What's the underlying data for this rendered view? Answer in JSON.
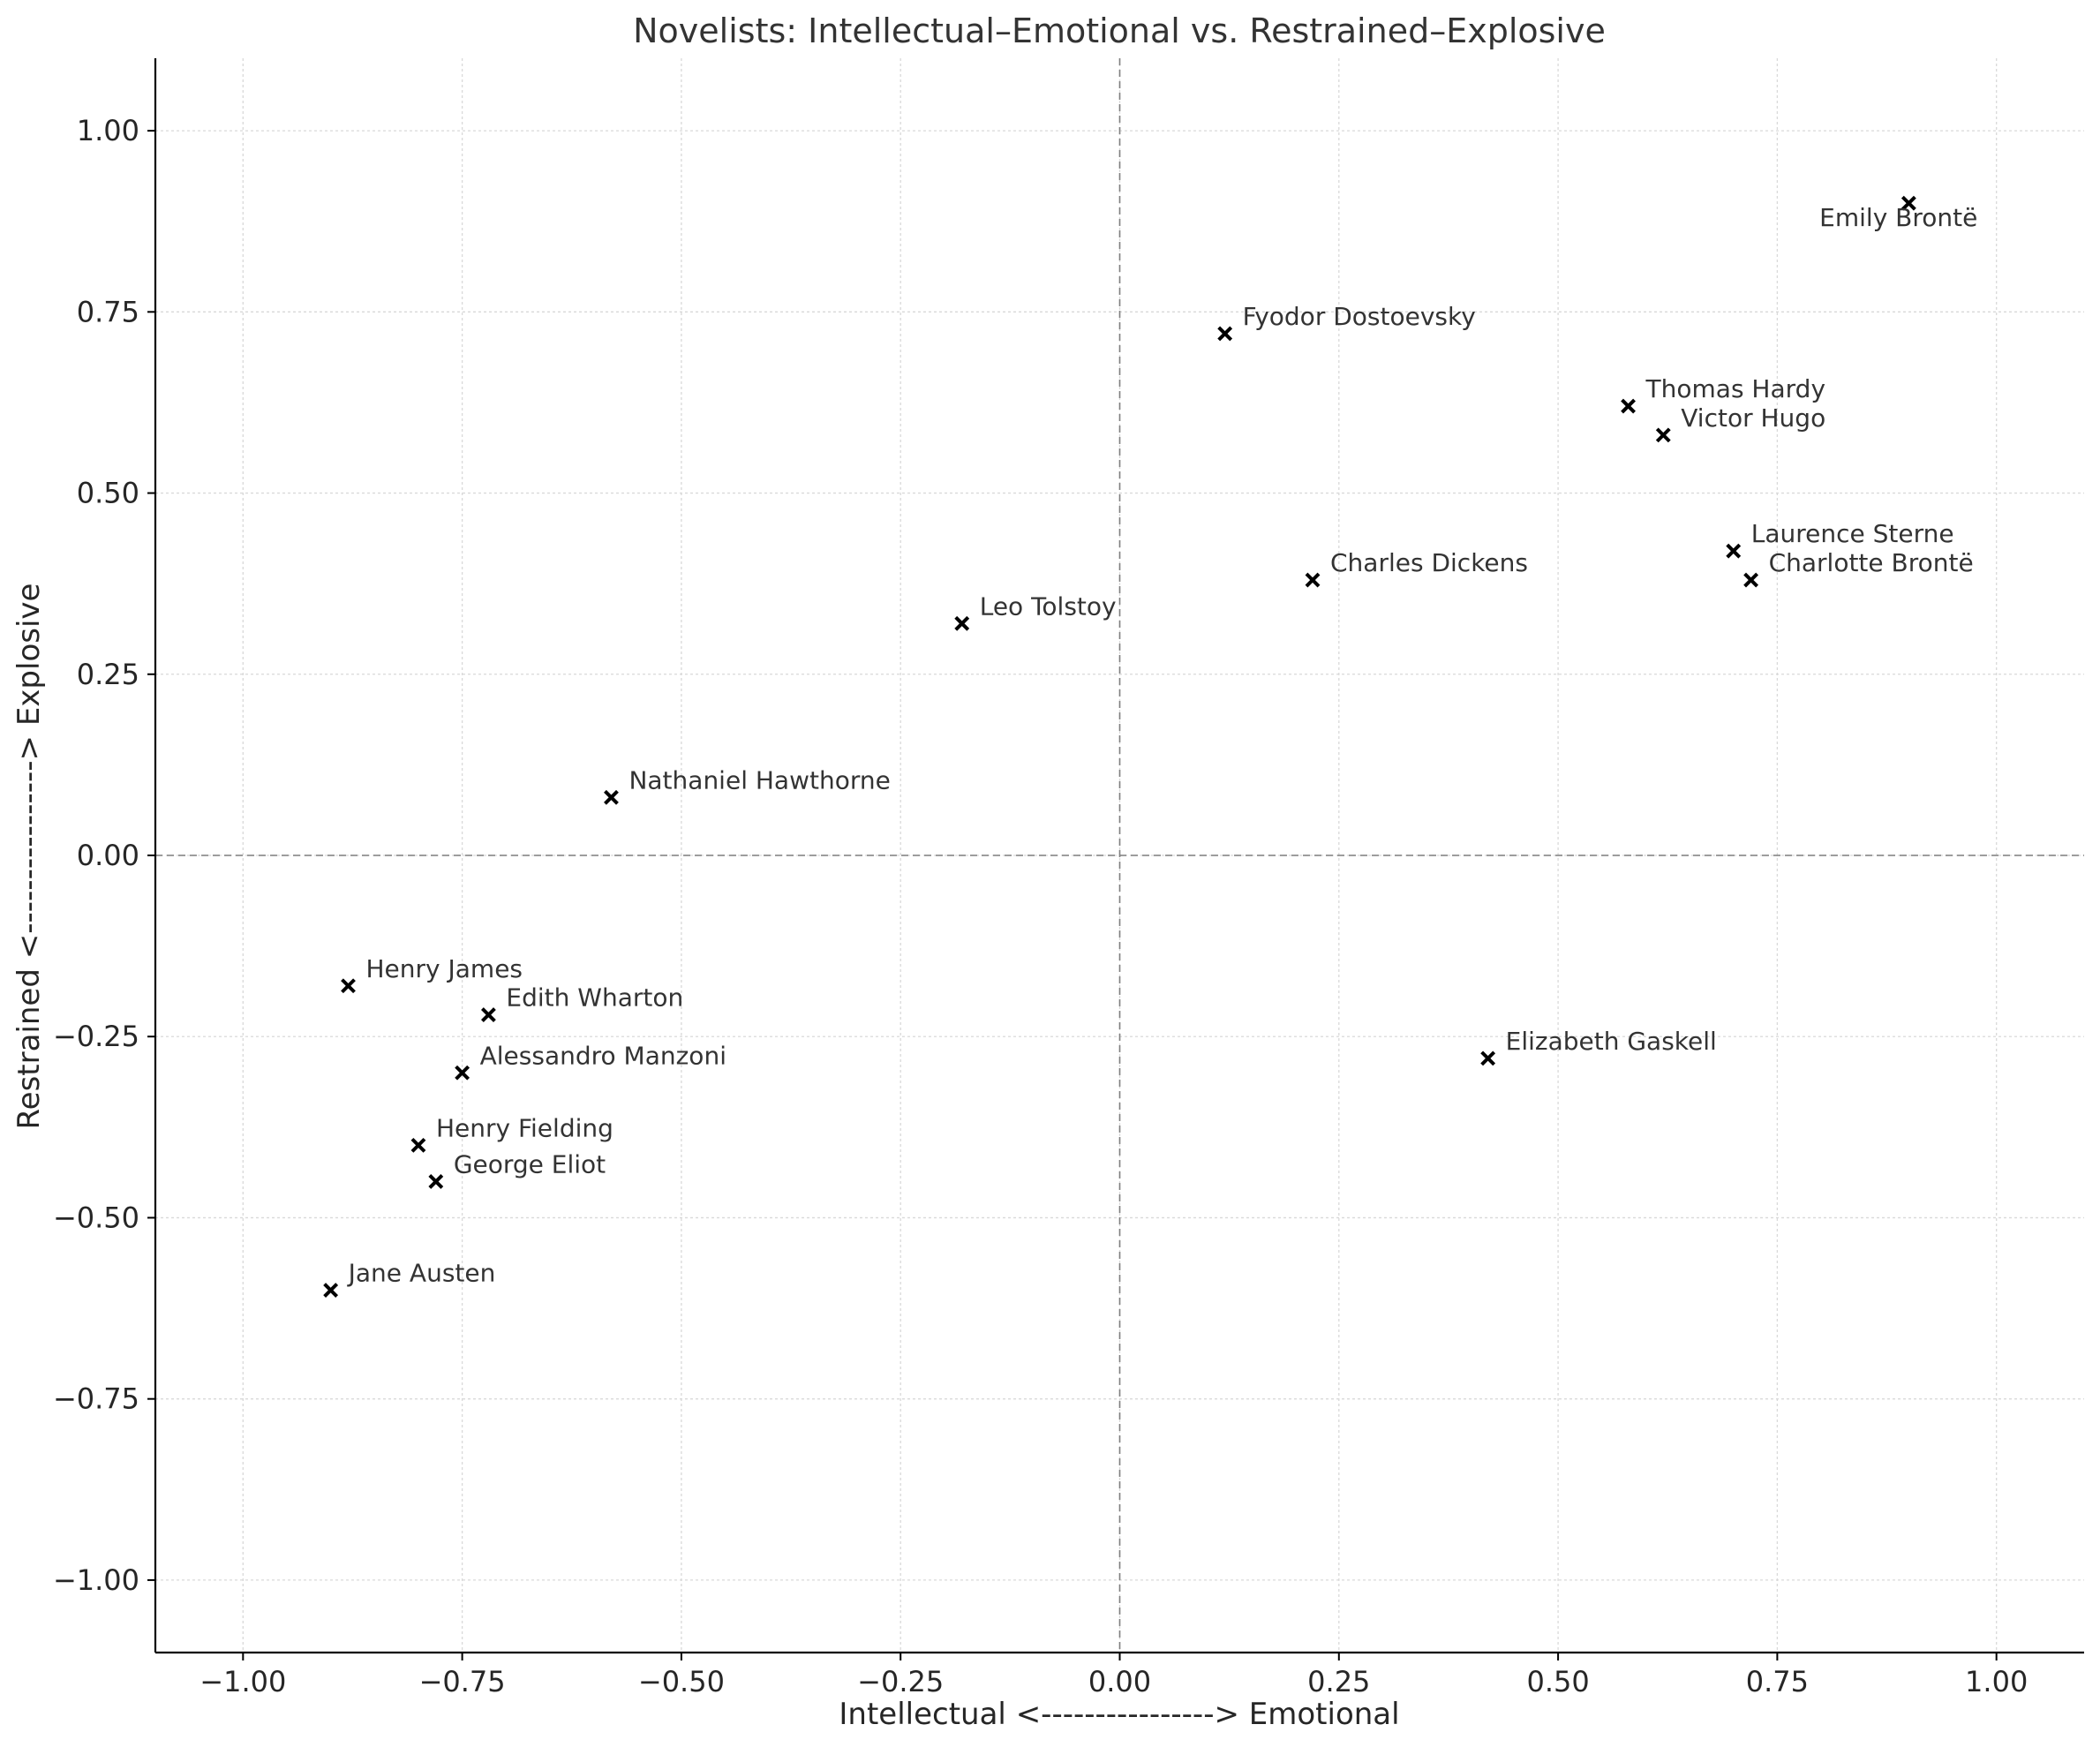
{
  "chart_data": {
    "type": "scatter",
    "title": "Novelists: Intellectual–Emotional vs. Restrained–Explosive",
    "xlabel": "Intellectual <----------------> Emotional",
    "ylabel": "Restrained <----------------> Explosive",
    "xlim": [
      -1.1,
      1.1
    ],
    "ylim": [
      -1.1,
      1.1
    ],
    "xticks": [
      -1.0,
      -0.75,
      -0.5,
      -0.25,
      0.0,
      0.25,
      0.5,
      0.75,
      1.0
    ],
    "yticks": [
      -1.0,
      -0.75,
      -0.5,
      -0.25,
      0.0,
      0.25,
      0.5,
      0.75,
      1.0
    ],
    "xtick_labels": [
      "−1.00",
      "−0.75",
      "−0.50",
      "−0.25",
      "0.00",
      "0.25",
      "0.50",
      "0.75",
      "1.00"
    ],
    "ytick_labels": [
      "−1.00",
      "−0.75",
      "−0.50",
      "−0.25",
      "0.00",
      "0.25",
      "0.50",
      "0.75",
      "1.00"
    ],
    "grid": true,
    "reference_lines": {
      "x": 0,
      "y": 0,
      "style": "dashed"
    },
    "marker": "x",
    "marker_color": "#000000",
    "points": [
      {
        "label": "Emily Brontë",
        "x": 0.9,
        "y": 0.9,
        "label_position": "below-left"
      },
      {
        "label": "Fyodor Dostoevsky",
        "x": 0.12,
        "y": 0.72
      },
      {
        "label": "Thomas Hardy",
        "x": 0.58,
        "y": 0.62
      },
      {
        "label": "Victor Hugo",
        "x": 0.62,
        "y": 0.58
      },
      {
        "label": "Laurence Sterne",
        "x": 0.7,
        "y": 0.42
      },
      {
        "label": "Charlotte Brontë",
        "x": 0.72,
        "y": 0.38
      },
      {
        "label": "Charles Dickens",
        "x": 0.22,
        "y": 0.38
      },
      {
        "label": "Leo Tolstoy",
        "x": -0.18,
        "y": 0.32
      },
      {
        "label": "Nathaniel Hawthorne",
        "x": -0.58,
        "y": 0.08
      },
      {
        "label": "Henry James",
        "x": -0.88,
        "y": -0.18
      },
      {
        "label": "Edith Wharton",
        "x": -0.72,
        "y": -0.22
      },
      {
        "label": "Alessandro Manzoni",
        "x": -0.75,
        "y": -0.3
      },
      {
        "label": "Elizabeth Gaskell",
        "x": 0.42,
        "y": -0.28
      },
      {
        "label": "Henry Fielding",
        "x": -0.8,
        "y": -0.4
      },
      {
        "label": "George Eliot",
        "x": -0.78,
        "y": -0.45
      },
      {
        "label": "Jane Austen",
        "x": -0.9,
        "y": -0.6
      }
    ]
  }
}
